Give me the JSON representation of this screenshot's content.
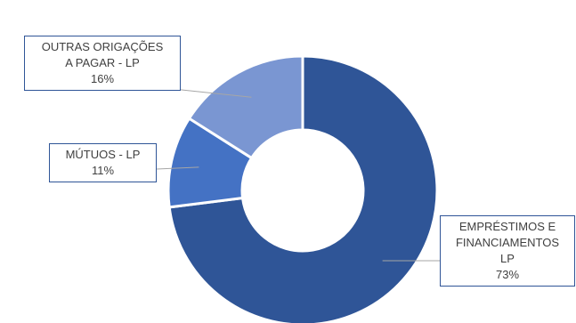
{
  "chart_data": {
    "type": "pie",
    "donut": true,
    "title": "",
    "legend": "none",
    "slices": [
      {
        "label": "EMPRÉSTIMOS E FINANCIAMENTOS LP",
        "label_lines": [
          "EMPRÉSTIMOS E",
          "FINANCIAMENTOS",
          "LP"
        ],
        "value": 73,
        "display": "73%",
        "color": "#2f5597"
      },
      {
        "label": "MÚTUOS - LP",
        "label_lines": [
          "MÚTUOS - LP"
        ],
        "value": 11,
        "display": "11%",
        "color": "#4472c4"
      },
      {
        "label": "OUTRAS ORIGAÇÕES A PAGAR - LP",
        "label_lines": [
          "OUTRAS ORIGAÇÕES",
          "A PAGAR - LP"
        ],
        "value": 16,
        "display": "16%",
        "color": "#7a96d2"
      }
    ]
  }
}
